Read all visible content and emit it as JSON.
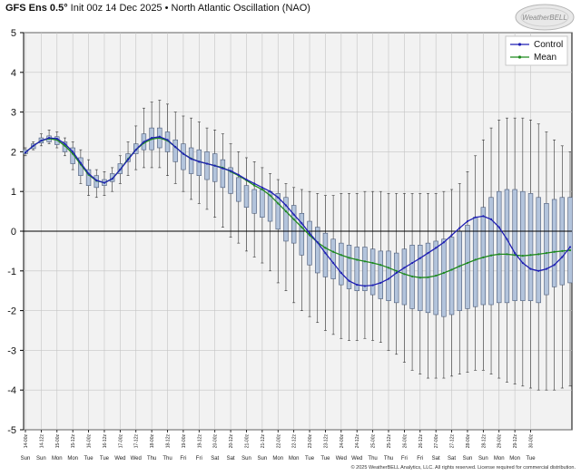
{
  "header": {
    "title_bold": "GFS Ens 0.5°",
    "title_rest": " Init 00z 14 Dec 2025 • North Atlantic Oscillation (NAO)"
  },
  "logo": {
    "text": "WeatherBELL"
  },
  "footer": {
    "text": "© 2025 WeatherBELL Analytics, LLC. All rights reserved. License required for commercial distribution."
  },
  "chart_data": {
    "type": "box-and-line",
    "title": "GFS Ens 0.5° Init 00z 14 Dec 2025 • North Atlantic Oscillation (NAO)",
    "ylim": [
      -5,
      5
    ],
    "yticks": [
      5,
      4,
      3,
      2,
      1,
      0,
      -1,
      -2,
      -3,
      -4,
      -5
    ],
    "grid": true,
    "legend_position": "top-right",
    "legend": [
      {
        "name": "Control",
        "color": "#1f1fb4"
      },
      {
        "name": "Mean",
        "color": "#1e8a1e"
      }
    ],
    "x_tick_labels": [
      "14-00z",
      "14-12z",
      "15-00z",
      "15-12z",
      "16-00z",
      "16-12z",
      "17-00z",
      "17-12z",
      "18-00z",
      "18-12z",
      "19-00z",
      "19-12z",
      "20-00z",
      "20-12z",
      "21-00z",
      "21-12z",
      "22-00z",
      "22-12z",
      "23-00z",
      "23-12z",
      "24-00z",
      "24-12z",
      "25-00z",
      "25-12z",
      "26-00z",
      "26-12z",
      "27-00z",
      "27-12z",
      "28-00z",
      "28-12z",
      "29-00z",
      "29-12z",
      "30-00z"
    ],
    "x_dow_labels": [
      "Sun",
      "Sun",
      "Mon",
      "Mon",
      "Tue",
      "Tue",
      "Wed",
      "Wed",
      "Thu",
      "Thu",
      "Fri",
      "Fri",
      "Sat",
      "Sat",
      "Sun",
      "Sun",
      "Mon",
      "Mon",
      "Tue",
      "Tue",
      "Wed",
      "Wed",
      "Thu",
      "Thu",
      "Fri",
      "Fri",
      "Sat",
      "Sat",
      "Sun",
      "Sun",
      "Mon",
      "Mon",
      "Tue"
    ],
    "control": [
      1.98,
      2.15,
      2.28,
      2.35,
      2.33,
      2.2,
      2.0,
      1.72,
      1.45,
      1.28,
      1.22,
      1.32,
      1.55,
      1.8,
      2.05,
      2.25,
      2.35,
      2.38,
      2.3,
      2.12,
      1.95,
      1.82,
      1.75,
      1.7,
      1.65,
      1.58,
      1.52,
      1.42,
      1.3,
      1.2,
      1.1,
      1.0,
      0.85,
      0.65,
      0.42,
      0.2,
      -0.05,
      -0.28,
      -0.55,
      -0.8,
      -1.05,
      -1.25,
      -1.35,
      -1.38,
      -1.36,
      -1.3,
      -1.2,
      -1.05,
      -0.92,
      -0.8,
      -0.68,
      -0.55,
      -0.42,
      -0.28,
      -0.1,
      0.08,
      0.25,
      0.35,
      0.38,
      0.3,
      0.1,
      -0.2,
      -0.55,
      -0.8,
      -0.95,
      -1.0,
      -0.95,
      -0.85,
      -0.65,
      -0.4
    ],
    "mean": [
      1.98,
      2.15,
      2.28,
      2.33,
      2.3,
      2.15,
      1.95,
      1.68,
      1.42,
      1.27,
      1.22,
      1.32,
      1.55,
      1.82,
      2.05,
      2.22,
      2.32,
      2.35,
      2.28,
      2.12,
      1.95,
      1.83,
      1.75,
      1.7,
      1.65,
      1.6,
      1.5,
      1.4,
      1.28,
      1.15,
      1.05,
      0.9,
      0.7,
      0.5,
      0.3,
      0.1,
      -0.1,
      -0.28,
      -0.42,
      -0.52,
      -0.6,
      -0.67,
      -0.72,
      -0.76,
      -0.8,
      -0.85,
      -0.92,
      -1.0,
      -1.08,
      -1.14,
      -1.17,
      -1.16,
      -1.12,
      -1.05,
      -0.97,
      -0.88,
      -0.8,
      -0.72,
      -0.66,
      -0.61,
      -0.58,
      -0.58,
      -0.6,
      -0.62,
      -0.6,
      -0.58,
      -0.55,
      -0.52,
      -0.5,
      -0.48
    ],
    "box_q1": [
      1.95,
      2.08,
      2.22,
      2.25,
      2.18,
      2.0,
      1.7,
      1.4,
      1.15,
      1.1,
      1.15,
      1.25,
      1.45,
      1.75,
      1.95,
      2.05,
      2.05,
      2.1,
      2.0,
      1.75,
      1.55,
      1.45,
      1.4,
      1.3,
      1.25,
      1.1,
      0.95,
      0.75,
      0.6,
      0.45,
      0.35,
      0.25,
      0.05,
      -0.25,
      -0.3,
      -0.6,
      -0.85,
      -1.05,
      -1.15,
      -1.2,
      -1.35,
      -1.45,
      -1.5,
      -1.5,
      -1.6,
      -1.7,
      -1.75,
      -1.8,
      -1.85,
      -1.95,
      -2.0,
      -2.05,
      -2.1,
      -2.15,
      -2.1,
      -2.0,
      -1.95,
      -1.9,
      -1.85,
      -1.85,
      -1.8,
      -1.8,
      -1.75,
      -1.75,
      -1.75,
      -1.8,
      -1.6,
      -1.4,
      -1.35,
      -1.3
    ],
    "box_q3": [
      2.05,
      2.2,
      2.35,
      2.4,
      2.38,
      2.25,
      2.1,
      1.85,
      1.55,
      1.4,
      1.3,
      1.45,
      1.7,
      1.95,
      2.2,
      2.45,
      2.6,
      2.6,
      2.5,
      2.3,
      2.2,
      2.1,
      2.05,
      2.0,
      1.95,
      1.8,
      1.6,
      1.35,
      1.15,
      1.05,
      1.05,
      1.0,
      0.95,
      0.85,
      0.65,
      0.45,
      0.25,
      0.1,
      -0.05,
      -0.2,
      -0.3,
      -0.35,
      -0.4,
      -0.4,
      -0.45,
      -0.5,
      -0.5,
      -0.55,
      -0.45,
      -0.35,
      -0.35,
      -0.3,
      -0.25,
      -0.2,
      -0.15,
      0.0,
      0.15,
      0.35,
      0.6,
      0.85,
      1.0,
      1.05,
      1.05,
      1.0,
      0.95,
      0.85,
      0.7,
      0.8,
      0.85,
      0.85
    ],
    "box_min": [
      1.9,
      2.05,
      2.15,
      2.2,
      2.1,
      1.9,
      1.55,
      1.2,
      0.9,
      0.85,
      0.9,
      1.0,
      1.2,
      1.4,
      1.55,
      1.6,
      1.6,
      1.6,
      1.4,
      1.2,
      1.0,
      0.8,
      0.7,
      0.55,
      0.35,
      0.1,
      -0.15,
      -0.3,
      -0.5,
      -0.65,
      -0.8,
      -1.0,
      -1.3,
      -1.5,
      -1.8,
      -2.0,
      -2.15,
      -2.3,
      -2.5,
      -2.6,
      -2.7,
      -2.75,
      -2.75,
      -2.7,
      -2.75,
      -2.8,
      -3.0,
      -3.1,
      -3.3,
      -3.5,
      -3.6,
      -3.7,
      -3.7,
      -3.7,
      -3.65,
      -3.6,
      -3.55,
      -3.5,
      -3.5,
      -3.6,
      -3.7,
      -3.8,
      -3.85,
      -3.9,
      -3.95,
      -4.0,
      -4.0,
      -4.0,
      -3.95,
      -3.9
    ],
    "box_max": [
      2.1,
      2.25,
      2.45,
      2.55,
      2.5,
      2.35,
      2.25,
      2.05,
      1.8,
      1.55,
      1.5,
      1.6,
      1.9,
      2.25,
      2.65,
      3.1,
      3.25,
      3.3,
      3.2,
      3.0,
      2.9,
      2.85,
      2.75,
      2.6,
      2.55,
      2.45,
      2.2,
      2.0,
      1.85,
      1.75,
      1.6,
      1.45,
      1.3,
      1.2,
      1.1,
      1.05,
      1.0,
      0.95,
      0.9,
      0.9,
      0.95,
      0.95,
      0.95,
      1.0,
      1.0,
      1.0,
      0.95,
      0.95,
      0.95,
      0.95,
      0.95,
      0.95,
      0.95,
      1.0,
      1.05,
      1.2,
      1.5,
      1.9,
      2.3,
      2.6,
      2.8,
      2.85,
      2.85,
      2.85,
      2.8,
      2.7,
      2.5,
      2.3,
      2.15,
      2.0
    ]
  }
}
